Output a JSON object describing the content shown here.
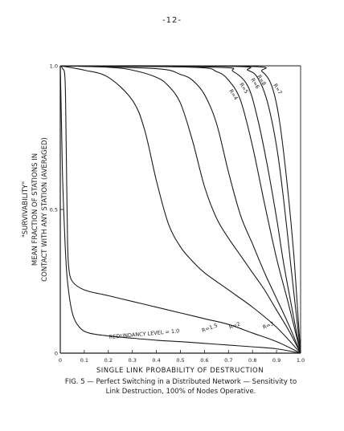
{
  "page_number": "-12-",
  "caption": {
    "line1": "FIG. 5 — Perfect Switching in a Distributed Network — Sensitivity to",
    "line2": "Link Destruction, 100% of Nodes Operative."
  },
  "chart_data": {
    "type": "line",
    "title": "",
    "xlabel": "SINGLE LINK PROBABILITY OF DESTRUCTION",
    "ylabel_lines": [
      "\"SURVIVABILITY\"",
      "MEAN FRACTION OF STATIONS IN",
      "CONTACT WITH ANY STATION (AVERAGED)"
    ],
    "xlim": [
      0,
      1.0
    ],
    "ylim": [
      0,
      1.0
    ],
    "x_ticks": [
      "0",
      "0.1",
      "0.2",
      "0.3",
      "0.4",
      "0.5",
      "0.6",
      "0.7",
      "0.8",
      "0.9",
      "1.0"
    ],
    "y_ticks": [
      "0",
      "0.5",
      "1.0"
    ],
    "grid": false,
    "series": [
      {
        "name": "REDUNDANCY LEVEL = 1.0",
        "points": [
          [
            0,
            1.0
          ],
          [
            0.005,
            0.8
          ],
          [
            0.01,
            0.6
          ],
          [
            0.02,
            0.38
          ],
          [
            0.03,
            0.25
          ],
          [
            0.05,
            0.14
          ],
          [
            0.08,
            0.09
          ],
          [
            0.12,
            0.07
          ],
          [
            0.2,
            0.06
          ],
          [
            0.3,
            0.052
          ],
          [
            0.4,
            0.045
          ],
          [
            0.5,
            0.04
          ],
          [
            0.6,
            0.034
          ],
          [
            0.7,
            0.028
          ],
          [
            0.8,
            0.022
          ],
          [
            0.9,
            0.015
          ],
          [
            1.0,
            0
          ]
        ]
      },
      {
        "name": "R=1.5",
        "points": [
          [
            0,
            1.0
          ],
          [
            0.01,
            0.99
          ],
          [
            0.02,
            0.95
          ],
          [
            0.025,
            0.7
          ],
          [
            0.03,
            0.4
          ],
          [
            0.035,
            0.3
          ],
          [
            0.05,
            0.25
          ],
          [
            0.1,
            0.22
          ],
          [
            0.2,
            0.2
          ],
          [
            0.3,
            0.18
          ],
          [
            0.4,
            0.16
          ],
          [
            0.5,
            0.14
          ],
          [
            0.6,
            0.12
          ],
          [
            0.7,
            0.1
          ],
          [
            0.8,
            0.07
          ],
          [
            0.9,
            0.04
          ],
          [
            1.0,
            0
          ]
        ]
      },
      {
        "name": "R=2",
        "points": [
          [
            0,
            1.0
          ],
          [
            0.1,
            0.985
          ],
          [
            0.2,
            0.96
          ],
          [
            0.3,
            0.88
          ],
          [
            0.35,
            0.78
          ],
          [
            0.4,
            0.6
          ],
          [
            0.45,
            0.45
          ],
          [
            0.5,
            0.37
          ],
          [
            0.55,
            0.32
          ],
          [
            0.6,
            0.28
          ],
          [
            0.7,
            0.22
          ],
          [
            0.8,
            0.16
          ],
          [
            0.9,
            0.09
          ],
          [
            1.0,
            0
          ]
        ]
      },
      {
        "name": "R=3",
        "points": [
          [
            0,
            1.0
          ],
          [
            0.2,
            0.995
          ],
          [
            0.3,
            0.985
          ],
          [
            0.4,
            0.96
          ],
          [
            0.45,
            0.93
          ],
          [
            0.5,
            0.87
          ],
          [
            0.55,
            0.74
          ],
          [
            0.6,
            0.58
          ],
          [
            0.65,
            0.47
          ],
          [
            0.7,
            0.4
          ],
          [
            0.75,
            0.34
          ],
          [
            0.8,
            0.28
          ],
          [
            0.85,
            0.22
          ],
          [
            0.9,
            0.15
          ],
          [
            0.95,
            0.08
          ],
          [
            1.0,
            0
          ]
        ]
      },
      {
        "name": "R=4",
        "points": [
          [
            0,
            1.0
          ],
          [
            0.4,
            0.99
          ],
          [
            0.5,
            0.97
          ],
          [
            0.55,
            0.95
          ],
          [
            0.6,
            0.9
          ],
          [
            0.65,
            0.8
          ],
          [
            0.7,
            0.63
          ],
          [
            0.75,
            0.48
          ],
          [
            0.8,
            0.38
          ],
          [
            0.85,
            0.28
          ],
          [
            0.9,
            0.19
          ],
          [
            0.95,
            0.1
          ],
          [
            1.0,
            0
          ]
        ]
      },
      {
        "name": "R=5",
        "points": [
          [
            0,
            1.0
          ],
          [
            0.55,
            0.995
          ],
          [
            0.65,
            0.98
          ],
          [
            0.7,
            0.95
          ],
          [
            0.75,
            0.88
          ],
          [
            0.8,
            0.72
          ],
          [
            0.85,
            0.52
          ],
          [
            0.9,
            0.33
          ],
          [
            0.95,
            0.17
          ],
          [
            1.0,
            0
          ]
        ]
      },
      {
        "name": "R=6",
        "points": [
          [
            0,
            1.0
          ],
          [
            0.65,
            0.995
          ],
          [
            0.72,
            0.98
          ],
          [
            0.78,
            0.93
          ],
          [
            0.82,
            0.82
          ],
          [
            0.86,
            0.66
          ],
          [
            0.9,
            0.47
          ],
          [
            0.93,
            0.31
          ],
          [
            0.97,
            0.13
          ],
          [
            1.0,
            0
          ]
        ]
      },
      {
        "name": "R=8",
        "points": [
          [
            0,
            1.0
          ],
          [
            0.72,
            0.998
          ],
          [
            0.78,
            0.985
          ],
          [
            0.82,
            0.96
          ],
          [
            0.86,
            0.88
          ],
          [
            0.9,
            0.72
          ],
          [
            0.93,
            0.53
          ],
          [
            0.96,
            0.3
          ],
          [
            0.98,
            0.15
          ],
          [
            1.0,
            0
          ]
        ]
      },
      {
        "name": "R=7",
        "points": [
          [
            0,
            1.0
          ],
          [
            0.78,
            0.998
          ],
          [
            0.84,
            0.98
          ],
          [
            0.88,
            0.93
          ],
          [
            0.91,
            0.82
          ],
          [
            0.94,
            0.62
          ],
          [
            0.97,
            0.36
          ],
          [
            0.99,
            0.12
          ],
          [
            1.0,
            0
          ]
        ]
      }
    ]
  }
}
